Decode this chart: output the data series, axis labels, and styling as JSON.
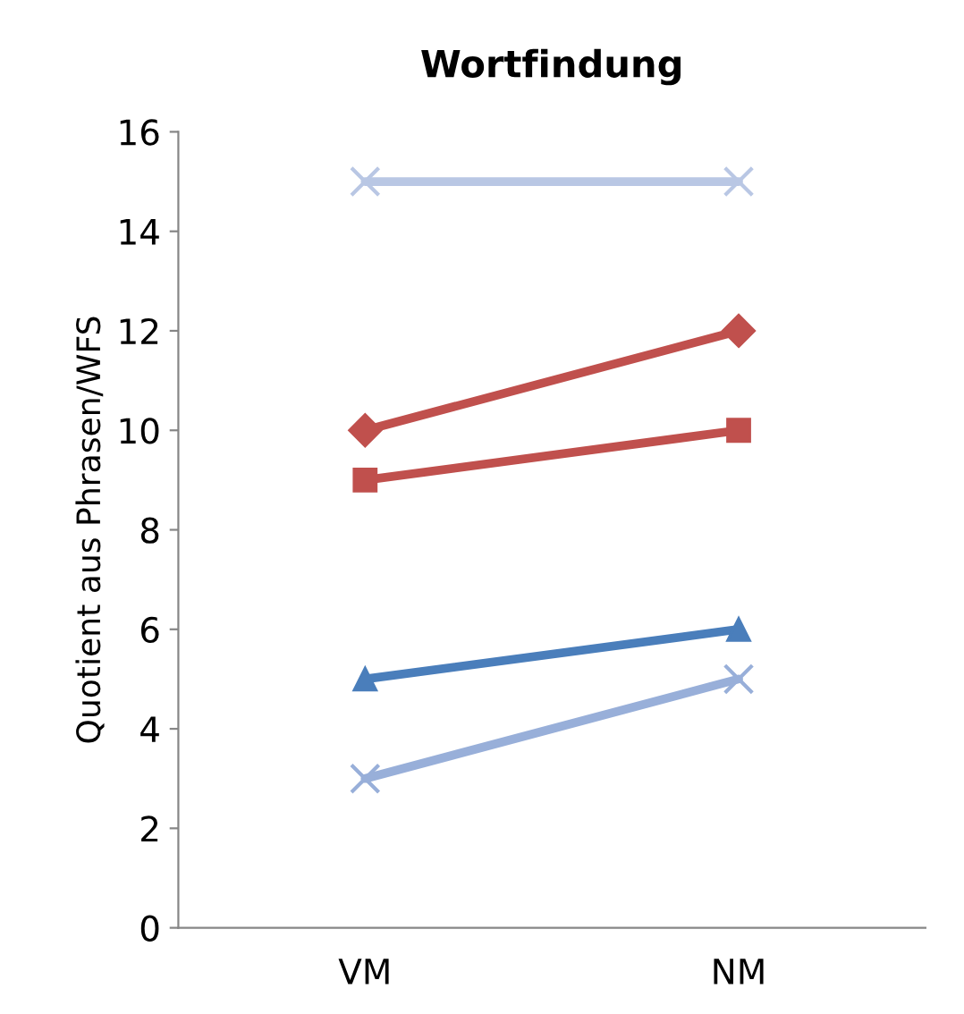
{
  "chart_data": {
    "type": "line",
    "title": "Wortfindung",
    "ylabel": "Quotient aus Phrasen/WFS",
    "categories": [
      "VM",
      "NM"
    ],
    "series": [
      {
        "color": "#b9c7e4",
        "values": [
          15,
          15
        ],
        "marker": "cross"
      },
      {
        "color": "#c0504d",
        "values": [
          10,
          12
        ],
        "marker": "diamond"
      },
      {
        "color": "#c0504d",
        "values": [
          9,
          10
        ],
        "marker": "square"
      },
      {
        "color": "#4a7ebb",
        "values": [
          5,
          6
        ],
        "marker": "triangle"
      },
      {
        "color": "#98afd9",
        "values": [
          3,
          5
        ],
        "marker": "cross"
      }
    ],
    "ylim": [
      0,
      16
    ],
    "yticks": [
      0,
      2,
      4,
      6,
      8,
      10,
      12,
      14,
      16
    ],
    "grid": false,
    "line_style": "solid"
  }
}
